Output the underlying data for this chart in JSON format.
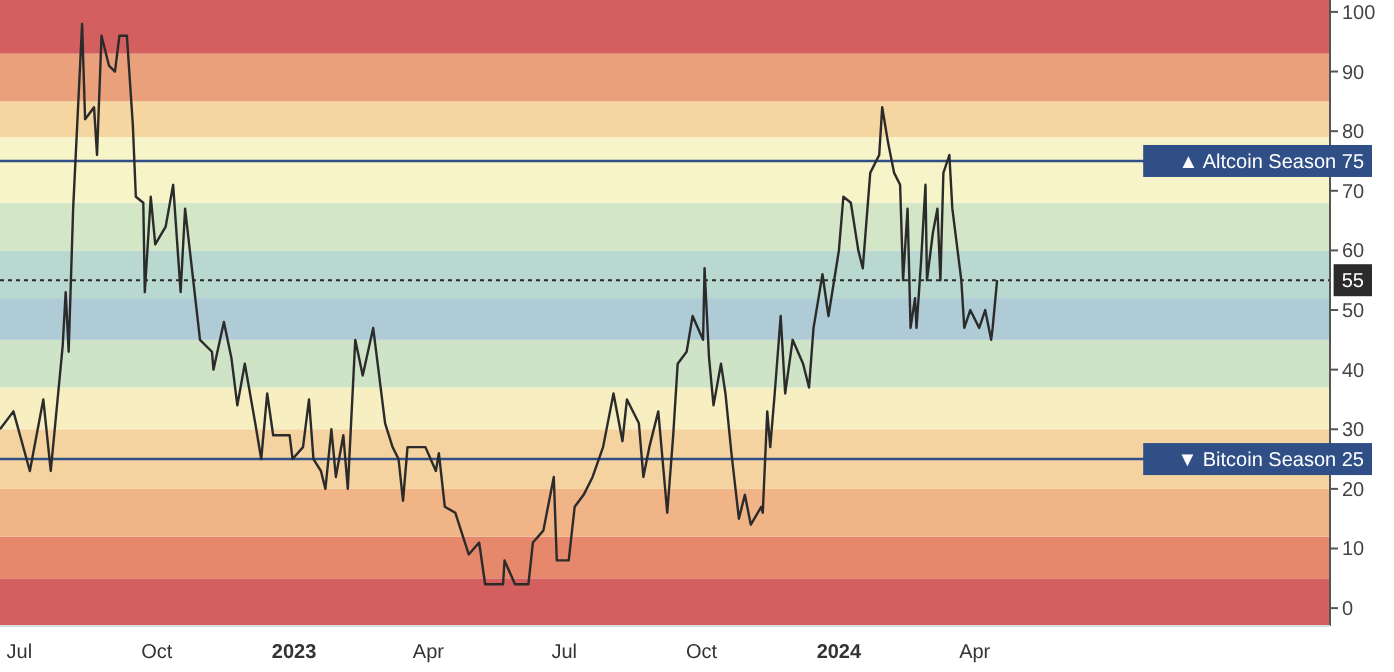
{
  "chart_data": {
    "type": "line",
    "x": [
      "2022-06-18",
      "2022-06-27",
      "2022-07-08",
      "2022-07-17",
      "2022-07-22",
      "2022-07-30",
      "2022-08-01",
      "2022-08-03",
      "2022-08-06",
      "2022-08-12",
      "2022-08-13",
      "2022-08-14",
      "2022-08-20",
      "2022-08-22",
      "2022-08-25",
      "2022-08-30",
      "2022-09-03",
      "2022-09-06",
      "2022-09-11",
      "2022-09-15",
      "2022-09-17",
      "2022-09-22",
      "2022-09-23",
      "2022-09-27",
      "2022-09-30",
      "2022-10-07",
      "2022-10-12",
      "2022-10-17",
      "2022-10-20",
      "2022-10-25",
      "2022-10-30",
      "2022-11-07",
      "2022-11-08",
      "2022-11-15",
      "2022-11-20",
      "2022-11-24",
      "2022-11-29",
      "2022-12-06",
      "2022-12-10",
      "2022-12-14",
      "2022-12-18",
      "2022-12-29",
      "2022-12-31",
      "2023-01-07",
      "2023-01-11",
      "2023-01-14",
      "2023-01-19",
      "2023-01-22",
      "2023-01-26",
      "2023-01-29",
      "2023-02-03",
      "2023-02-06",
      "2023-02-11",
      "2023-02-16",
      "2023-02-23",
      "2023-02-26",
      "2023-03-03",
      "2023-03-08",
      "2023-03-12",
      "2023-03-15",
      "2023-03-18",
      "2023-03-30",
      "2023-04-06",
      "2023-04-08",
      "2023-04-12",
      "2023-04-19",
      "2023-04-28",
      "2023-05-05",
      "2023-05-09",
      "2023-05-21",
      "2023-05-22",
      "2023-05-29",
      "2023-06-07",
      "2023-06-10",
      "2023-06-17",
      "2023-06-24",
      "2023-06-26",
      "2023-07-04",
      "2023-07-08",
      "2023-07-14",
      "2023-07-20",
      "2023-07-27",
      "2023-08-03",
      "2023-08-09",
      "2023-08-12",
      "2023-08-20",
      "2023-08-23",
      "2023-08-27",
      "2023-09-02",
      "2023-09-08",
      "2023-09-12",
      "2023-09-15",
      "2023-09-21",
      "2023-09-25",
      "2023-10-02",
      "2023-10-03",
      "2023-10-06",
      "2023-10-09",
      "2023-10-14",
      "2023-10-17",
      "2023-10-21",
      "2023-10-26",
      "2023-10-30",
      "2023-11-03",
      "2023-11-10",
      "2023-11-11",
      "2023-11-14",
      "2023-11-16",
      "2023-11-19",
      "2023-11-23",
      "2023-11-26",
      "2023-12-01",
      "2023-12-08",
      "2023-12-12",
      "2023-12-15",
      "2023-12-21",
      "2023-12-25",
      "2024-01-01",
      "2024-01-04",
      "2024-01-09",
      "2024-01-14",
      "2024-01-17",
      "2024-01-22",
      "2024-01-28",
      "2024-01-30",
      "2024-02-03",
      "2024-02-07",
      "2024-02-11",
      "2024-02-13",
      "2024-02-16",
      "2024-02-18",
      "2024-02-21",
      "2024-02-22",
      "2024-02-25",
      "2024-02-28",
      "2024-02-29",
      "2024-03-04",
      "2024-03-07",
      "2024-03-09",
      "2024-03-11",
      "2024-03-15",
      "2024-03-17",
      "2024-03-20",
      "2024-03-23",
      "2024-03-25",
      "2024-03-29",
      "2024-04-04",
      "2024-04-08",
      "2024-04-12",
      "2024-04-13",
      "2024-04-16"
    ],
    "series": [
      {
        "color": "#2b2b2b",
        "values": [
          30,
          33,
          23,
          35,
          23,
          44,
          53,
          43,
          67,
          98,
          90,
          82,
          84,
          76,
          96,
          91,
          90,
          96,
          96,
          81,
          69,
          68,
          53,
          69,
          61,
          64,
          71,
          53,
          67,
          56,
          45,
          43,
          40,
          48,
          42,
          34,
          41,
          31,
          25,
          36,
          29,
          29,
          25,
          27,
          35,
          25,
          23,
          20,
          30,
          22,
          29,
          20,
          45,
          39,
          47,
          41,
          31,
          27,
          25,
          18,
          27,
          27,
          23,
          26,
          17,
          16,
          9,
          11,
          4,
          4,
          8,
          4,
          4,
          11,
          13,
          22,
          8,
          8,
          17,
          19,
          22,
          27,
          36,
          28,
          35,
          31,
          22,
          27,
          33,
          16,
          29,
          41,
          43,
          49,
          45,
          57,
          42,
          34,
          41,
          36,
          26,
          15,
          19,
          14,
          17,
          16,
          33,
          27,
          36,
          49,
          36,
          45,
          41,
          37,
          47,
          56,
          49,
          60,
          69,
          68,
          60,
          57,
          73,
          76,
          84,
          78,
          73,
          71,
          55,
          67,
          47,
          52,
          47,
          58,
          71,
          55,
          63,
          67,
          55,
          73,
          76,
          67,
          61,
          55,
          47,
          50,
          47,
          50,
          45,
          47,
          55
        ]
      }
    ],
    "xlim": [
      "2022-06-18",
      "2024-11-25"
    ],
    "xticks": [
      {
        "value": "2022-07-01",
        "label": "Jul"
      },
      {
        "value": "2022-10-01",
        "label": "Oct"
      },
      {
        "value": "2023-01-01",
        "label": "2023"
      },
      {
        "value": "2023-04-01",
        "label": "Apr"
      },
      {
        "value": "2023-07-01",
        "label": "Jul"
      },
      {
        "value": "2023-10-01",
        "label": "Oct"
      },
      {
        "value": "2024-01-01",
        "label": "2024"
      },
      {
        "value": "2024-04-01",
        "label": "Apr"
      }
    ],
    "ylim": [
      -3,
      102
    ],
    "yticks": [
      0,
      10,
      20,
      30,
      40,
      50,
      60,
      70,
      80,
      90,
      100
    ],
    "grid": false,
    "line_style": "solid",
    "ref_lines": [
      {
        "axis": "y",
        "value": 75,
        "label": "▲ Altcoin Season 75",
        "color": "#2f4f86",
        "line_style": "solid"
      },
      {
        "axis": "y",
        "value": 25,
        "label": "▼ Bitcoin Season 25",
        "color": "#2f4f86",
        "line_style": "solid"
      },
      {
        "axis": "y",
        "value": 55,
        "label": "55",
        "color": "#2b2b2b",
        "line_style": "dotted"
      }
    ],
    "bands": [
      {
        "axis": "y",
        "from": -3,
        "to": 5,
        "color": "#d35f5f"
      },
      {
        "axis": "y",
        "from": 5,
        "to": 12,
        "color": "#e5886c"
      },
      {
        "axis": "y",
        "from": 12,
        "to": 20,
        "color": "#f0b487"
      },
      {
        "axis": "y",
        "from": 20,
        "to": 30,
        "color": "#f5d3a0"
      },
      {
        "axis": "y",
        "from": 30,
        "to": 37,
        "color": "#f7efc2"
      },
      {
        "axis": "y",
        "from": 37,
        "to": 45,
        "color": "#cfe3c6"
      },
      {
        "axis": "y",
        "from": 45,
        "to": 52,
        "color": "#afcbd6"
      },
      {
        "axis": "y",
        "from": 52,
        "to": 60,
        "color": "#b9d8cf"
      },
      {
        "axis": "y",
        "from": 60,
        "to": 68,
        "color": "#d3e7c6"
      },
      {
        "axis": "y",
        "from": 68,
        "to": 79,
        "color": "#f8f4c9"
      },
      {
        "axis": "y",
        "from": 79,
        "to": 85,
        "color": "#f5d6a0"
      },
      {
        "axis": "y",
        "from": 85,
        "to": 93,
        "color": "#eaa07a"
      },
      {
        "axis": "y",
        "from": 93,
        "to": 102,
        "color": "#d35f5f"
      }
    ]
  }
}
